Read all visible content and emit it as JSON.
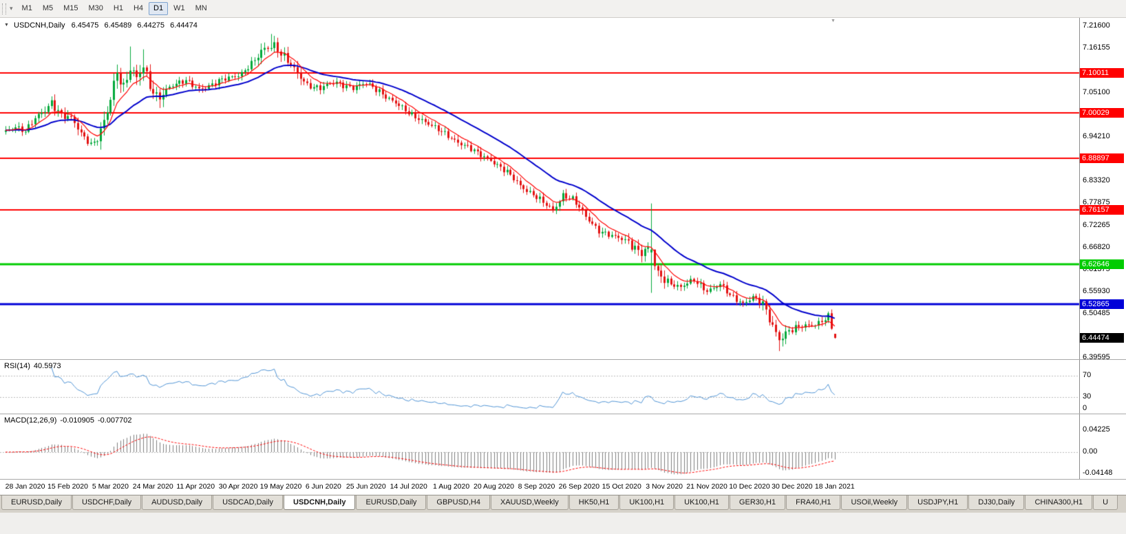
{
  "toolbar": {
    "timeframes": [
      {
        "label": "M1"
      },
      {
        "label": "M5"
      },
      {
        "label": "M15"
      },
      {
        "label": "M30"
      },
      {
        "label": "H1"
      },
      {
        "label": "H4"
      },
      {
        "label": "D1",
        "selected": true
      },
      {
        "label": "W1"
      },
      {
        "label": "MN"
      }
    ]
  },
  "chart": {
    "header": {
      "symbol": "USDCNH,Daily",
      "open": "6.45475",
      "high": "6.45489",
      "low": "6.44275",
      "close": "6.44474"
    },
    "price_axis_ticks": [
      "7.21600",
      "7.16155",
      "7.05100",
      "6.94210",
      "6.83320",
      "6.77875",
      "6.72265",
      "6.66820",
      "6.61375",
      "6.55930",
      "6.50485",
      "6.39595"
    ],
    "levels": [
      {
        "value": 7.10011,
        "label": "7.10011",
        "color": "#ff0000",
        "width": 2
      },
      {
        "value": 7.00029,
        "label": "7.00029",
        "color": "#ff0000",
        "width": 2
      },
      {
        "value": 6.88897,
        "label": "6.88897",
        "color": "#ff0000",
        "width": 2
      },
      {
        "value": 6.76157,
        "label": "6.76157",
        "color": "#ff0000",
        "width": 2
      },
      {
        "value": 6.62646,
        "label": "6.62646",
        "color": "#00cc00",
        "width": 3
      },
      {
        "value": 6.52865,
        "label": "6.52865",
        "color": "#0000d8",
        "width": 3
      }
    ],
    "current_price": {
      "value": 6.44474,
      "label": "6.44474",
      "color": "#000000"
    }
  },
  "rsi": {
    "name": "RSI(14)",
    "value": "40.5973",
    "period": 14,
    "levels": [
      70,
      30
    ],
    "axis": [
      {
        "v": 70,
        "label": "70"
      },
      {
        "v": 30,
        "label": "30"
      },
      {
        "v": 0,
        "label": "0"
      }
    ]
  },
  "macd": {
    "name": "MACD(12,26,9)",
    "value_main": "-0.010905",
    "value_signal": "-0.007702",
    "fast": 12,
    "slow": 26,
    "signal": 9,
    "axis": [
      {
        "v": 0.04225,
        "label": "0.04225"
      },
      {
        "v": 0,
        "label": "0.00"
      },
      {
        "v": -0.04148,
        "label": "-0.04148"
      }
    ]
  },
  "tabs": [
    {
      "label": "EURUSD,Daily"
    },
    {
      "label": "USDCHF,Daily"
    },
    {
      "label": "AUDUSD,Daily"
    },
    {
      "label": "USDCAD,Daily"
    },
    {
      "label": "USDCNH,Daily",
      "active": true
    },
    {
      "label": "EURUSD,Daily"
    },
    {
      "label": "GBPUSD,H4"
    },
    {
      "label": "XAUUSD,Weekly"
    },
    {
      "label": "HK50,H1"
    },
    {
      "label": "UK100,H1"
    },
    {
      "label": "UK100,H1"
    },
    {
      "label": "GER30,H1"
    },
    {
      "label": "FRA40,H1"
    },
    {
      "label": "USOil,Weekly"
    },
    {
      "label": "USDJPY,H1"
    },
    {
      "label": "DJ30,Daily"
    },
    {
      "label": "CHINA300,H1"
    },
    {
      "label": "U"
    }
  ],
  "chart_data": {
    "type": "candlestick",
    "symbol": "USDCNH",
    "timeframe": "Daily",
    "candles_total": 254,
    "x_labels": [
      {
        "i": 6,
        "label": "28 Jan 2020"
      },
      {
        "i": 19,
        "label": "15 Feb 2020"
      },
      {
        "i": 32,
        "label": "5 Mar 2020"
      },
      {
        "i": 45,
        "label": "24 Mar 2020"
      },
      {
        "i": 58,
        "label": "11 Apr 2020"
      },
      {
        "i": 71,
        "label": "30 Apr 2020"
      },
      {
        "i": 84,
        "label": "19 May 2020"
      },
      {
        "i": 97,
        "label": "6 Jun 2020"
      },
      {
        "i": 110,
        "label": "25 Jun 2020"
      },
      {
        "i": 123,
        "label": "14 Jul 2020"
      },
      {
        "i": 136,
        "label": "1 Aug 2020"
      },
      {
        "i": 149,
        "label": "20 Aug 2020"
      },
      {
        "i": 162,
        "label": "8 Sep 2020"
      },
      {
        "i": 175,
        "label": "26 Sep 2020"
      },
      {
        "i": 188,
        "label": "15 Oct 2020"
      },
      {
        "i": 201,
        "label": "3 Nov 2020"
      },
      {
        "i": 214,
        "label": "21 Nov 2020"
      },
      {
        "i": 227,
        "label": "10 Dec 2020"
      },
      {
        "i": 240,
        "label": "30 Dec 2020"
      },
      {
        "i": 253,
        "label": "18 Jan 2021"
      }
    ],
    "price_path_anchors": [
      {
        "i": 0,
        "p": 6.952
      },
      {
        "i": 3,
        "p": 6.968
      },
      {
        "i": 6,
        "p": 6.958
      },
      {
        "i": 9,
        "p": 6.986
      },
      {
        "i": 12,
        "p": 7.005
      },
      {
        "i": 14,
        "p": 7.028
      },
      {
        "i": 17,
        "p": 7.0
      },
      {
        "i": 20,
        "p": 6.985
      },
      {
        "i": 23,
        "p": 6.948
      },
      {
        "i": 26,
        "p": 6.925
      },
      {
        "i": 28,
        "p": 6.938
      },
      {
        "i": 31,
        "p": 7.0
      },
      {
        "i": 34,
        "p": 7.098
      },
      {
        "i": 36,
        "p": 7.065
      },
      {
        "i": 38,
        "p": 7.118
      },
      {
        "i": 40,
        "p": 7.09
      },
      {
        "i": 42,
        "p": 7.112
      },
      {
        "i": 44,
        "p": 7.062
      },
      {
        "i": 46,
        "p": 7.038
      },
      {
        "i": 50,
        "p": 7.068
      },
      {
        "i": 55,
        "p": 7.078
      },
      {
        "i": 59,
        "p": 7.062
      },
      {
        "i": 63,
        "p": 7.07
      },
      {
        "i": 68,
        "p": 7.088
      },
      {
        "i": 72,
        "p": 7.1
      },
      {
        "i": 76,
        "p": 7.128
      },
      {
        "i": 79,
        "p": 7.16
      },
      {
        "i": 82,
        "p": 7.172
      },
      {
        "i": 85,
        "p": 7.138
      },
      {
        "i": 88,
        "p": 7.105
      },
      {
        "i": 92,
        "p": 7.072
      },
      {
        "i": 96,
        "p": 7.062
      },
      {
        "i": 101,
        "p": 7.076
      },
      {
        "i": 106,
        "p": 7.064
      },
      {
        "i": 110,
        "p": 7.072
      },
      {
        "i": 114,
        "p": 7.056
      },
      {
        "i": 118,
        "p": 7.03
      },
      {
        "i": 122,
        "p": 7.005
      },
      {
        "i": 127,
        "p": 6.985
      },
      {
        "i": 131,
        "p": 6.962
      },
      {
        "i": 135,
        "p": 6.945
      },
      {
        "i": 140,
        "p": 6.92
      },
      {
        "i": 144,
        "p": 6.9
      },
      {
        "i": 148,
        "p": 6.886
      },
      {
        "i": 153,
        "p": 6.852
      },
      {
        "i": 157,
        "p": 6.822
      },
      {
        "i": 161,
        "p": 6.8
      },
      {
        "i": 164,
        "p": 6.778
      },
      {
        "i": 167,
        "p": 6.758
      },
      {
        "i": 170,
        "p": 6.8
      },
      {
        "i": 173,
        "p": 6.788
      },
      {
        "i": 177,
        "p": 6.742
      },
      {
        "i": 181,
        "p": 6.712
      },
      {
        "i": 186,
        "p": 6.692
      },
      {
        "i": 190,
        "p": 6.683
      },
      {
        "i": 194,
        "p": 6.657
      },
      {
        "i": 196,
        "p": 6.664
      },
      {
        "i": 199,
        "p": 6.601
      },
      {
        "i": 202,
        "p": 6.585
      },
      {
        "i": 206,
        "p": 6.57
      },
      {
        "i": 210,
        "p": 6.586
      },
      {
        "i": 214,
        "p": 6.563
      },
      {
        "i": 218,
        "p": 6.576
      },
      {
        "i": 221,
        "p": 6.548
      },
      {
        "i": 225,
        "p": 6.532
      },
      {
        "i": 228,
        "p": 6.546
      },
      {
        "i": 231,
        "p": 6.525
      },
      {
        "i": 233,
        "p": 6.49
      },
      {
        "i": 236,
        "p": 6.445
      },
      {
        "i": 239,
        "p": 6.463
      },
      {
        "i": 243,
        "p": 6.472
      },
      {
        "i": 247,
        "p": 6.48
      },
      {
        "i": 250,
        "p": 6.492
      },
      {
        "i": 251,
        "p": 6.497
      },
      {
        "i": 252,
        "p": 6.468
      },
      {
        "i": 253,
        "p": 6.44474
      }
    ],
    "overrides": [
      {
        "i": 38,
        "h": 7.165
      },
      {
        "i": 42,
        "h": 7.158
      },
      {
        "i": 81,
        "h": 7.196
      },
      {
        "i": 197,
        "o": 6.656,
        "h": 6.777,
        "l": 6.556,
        "c": 6.663
      },
      {
        "i": 236,
        "l": 6.412
      },
      {
        "i": 253,
        "o": 6.45475,
        "h": 6.45489,
        "l": 6.44275,
        "c": 6.44474
      }
    ],
    "volatility_zones": [
      {
        "a": 12,
        "b": 22,
        "v": 1.4
      },
      {
        "a": 29,
        "b": 48,
        "v": 2.0
      },
      {
        "a": 76,
        "b": 90,
        "v": 1.5
      },
      {
        "a": 190,
        "b": 202,
        "v": 1.5
      },
      {
        "a": 231,
        "b": 240,
        "v": 1.5
      }
    ],
    "colors": {
      "bull": "#00a83a",
      "bear": "#e31212",
      "ma_fast": "#ff0000",
      "ma_slow": "#0000cc",
      "rsi_line": "#4f93d4",
      "macd_hist": "#7e7e7e",
      "macd_signal": "#ff0000"
    }
  }
}
